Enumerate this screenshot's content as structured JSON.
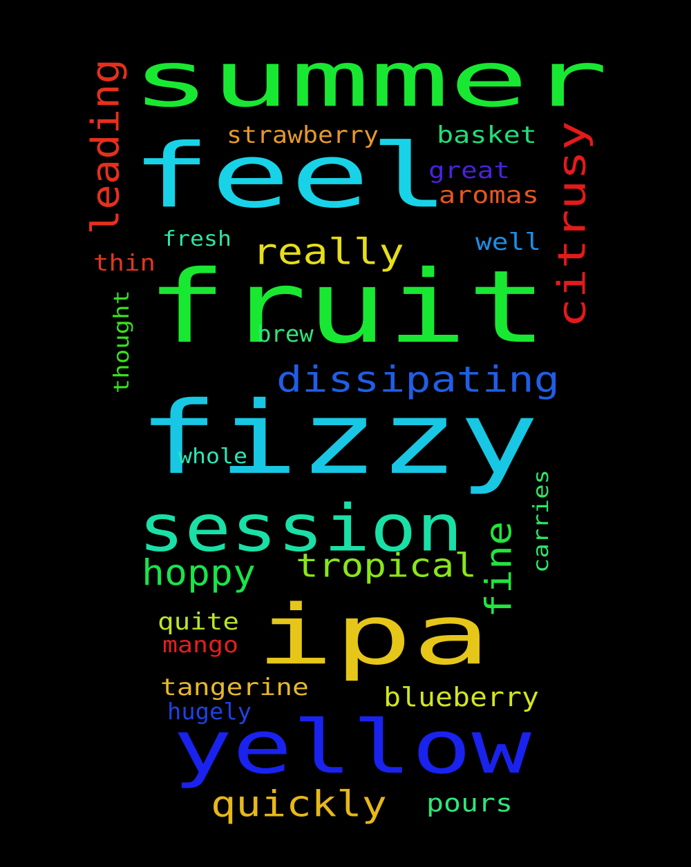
{
  "background": "#000000",
  "words": [
    {
      "text": "summer",
      "color": "#19e832"
    },
    {
      "text": "feel",
      "color": "#18d3e8"
    },
    {
      "text": "fruit",
      "color": "#19e832"
    },
    {
      "text": "fizzy",
      "color": "#18c7e4"
    },
    {
      "text": "ipa",
      "color": "#e6c619"
    },
    {
      "text": "yellow",
      "color": "#1a22ee"
    },
    {
      "text": "session",
      "color": "#19e0a6"
    },
    {
      "text": "citrusy",
      "color": "#e41a1a"
    },
    {
      "text": "leading",
      "color": "#e5301c"
    },
    {
      "text": "really",
      "color": "#e6de19"
    },
    {
      "text": "dissipating",
      "color": "#1f5ee6"
    },
    {
      "text": "hoppy",
      "color": "#19e44a"
    },
    {
      "text": "tropical",
      "color": "#8ae619"
    },
    {
      "text": "fine",
      "color": "#21e63d"
    },
    {
      "text": "quickly",
      "color": "#e6b819"
    },
    {
      "text": "strawberry",
      "color": "#e69a2a"
    },
    {
      "text": "basket",
      "color": "#1ee07a"
    },
    {
      "text": "great",
      "color": "#4a22e0"
    },
    {
      "text": "aromas",
      "color": "#e8561e"
    },
    {
      "text": "well",
      "color": "#1e8ee6"
    },
    {
      "text": "fresh",
      "color": "#2ee6a2"
    },
    {
      "text": "thin",
      "color": "#e0381e"
    },
    {
      "text": "thought",
      "color": "#38e01e"
    },
    {
      "text": "brew",
      "color": "#2ee67a"
    },
    {
      "text": "whole",
      "color": "#2ee6b8"
    },
    {
      "text": "carries",
      "color": "#2ee66a"
    },
    {
      "text": "quite",
      "color": "#b8e62a"
    },
    {
      "text": "mango",
      "color": "#e61e1e"
    },
    {
      "text": "tangerine",
      "color": "#e6b82a"
    },
    {
      "text": "blueberry",
      "color": "#d2e61e"
    },
    {
      "text": "hugely",
      "color": "#1e42e6"
    },
    {
      "text": "pours",
      "color": "#2ee67a"
    }
  ]
}
